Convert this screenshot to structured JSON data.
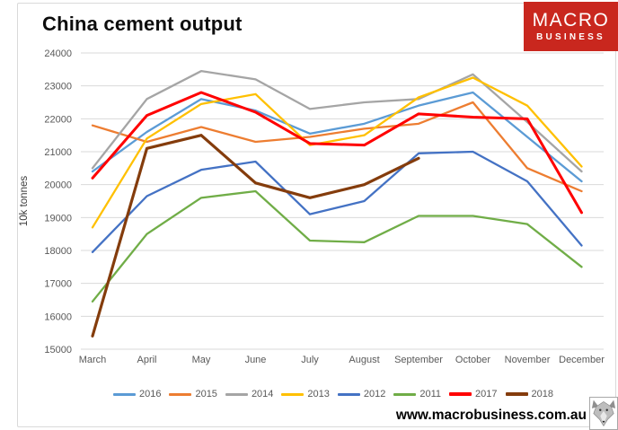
{
  "header": {
    "title": "China cement output"
  },
  "logo": {
    "line1": "MACRO",
    "line2": "BUSINESS",
    "bg_color": "#C9271E",
    "text_color": "#FFFFFF"
  },
  "chart_data": {
    "type": "line",
    "title": "China cement output",
    "x": [
      "March",
      "April",
      "May",
      "June",
      "July",
      "August",
      "September",
      "October",
      "November",
      "December"
    ],
    "ylabel": "10k tonnes",
    "ylim": [
      15000,
      24000
    ],
    "ytick_step": 1000,
    "grid": true,
    "legend_position": "bottom",
    "series": [
      {
        "name": "2016",
        "color": "#5B9BD5",
        "width": 2.3,
        "values": [
          20400,
          21600,
          22600,
          22250,
          21550,
          21850,
          22400,
          22800,
          21450,
          20100
        ]
      },
      {
        "name": "2015",
        "color": "#ED7D31",
        "width": 2.3,
        "values": [
          21800,
          21300,
          21750,
          21300,
          21450,
          21700,
          21850,
          22500,
          20500,
          19800
        ]
      },
      {
        "name": "2014",
        "color": "#A5A5A5",
        "width": 2.3,
        "values": [
          20500,
          22600,
          23450,
          23200,
          22300,
          22500,
          22600,
          23350,
          21900,
          20400
        ]
      },
      {
        "name": "2013",
        "color": "#FFC000",
        "width": 2.3,
        "values": [
          18700,
          21400,
          22450,
          22750,
          21200,
          21500,
          22650,
          23250,
          22400,
          20550
        ]
      },
      {
        "name": "2012",
        "color": "#4472C4",
        "width": 2.3,
        "values": [
          17950,
          19650,
          20450,
          20700,
          19100,
          19500,
          20950,
          21000,
          20100,
          18150
        ]
      },
      {
        "name": "2011",
        "color": "#70AD47",
        "width": 2.3,
        "values": [
          16450,
          18500,
          19600,
          19800,
          18300,
          18250,
          19050,
          19050,
          18800,
          17500
        ]
      },
      {
        "name": "2017",
        "color": "#FF0000",
        "width": 3,
        "values": [
          20200,
          22100,
          22800,
          22200,
          21250,
          21200,
          22150,
          22050,
          22000,
          19150
        ]
      },
      {
        "name": "2018",
        "color": "#843C0C",
        "width": 3.2,
        "values": [
          15400,
          21100,
          21500,
          20050,
          19600,
          20000,
          20800,
          null,
          null,
          null
        ]
      }
    ]
  },
  "footer": {
    "url": "www.macrobusiness.com.au"
  }
}
